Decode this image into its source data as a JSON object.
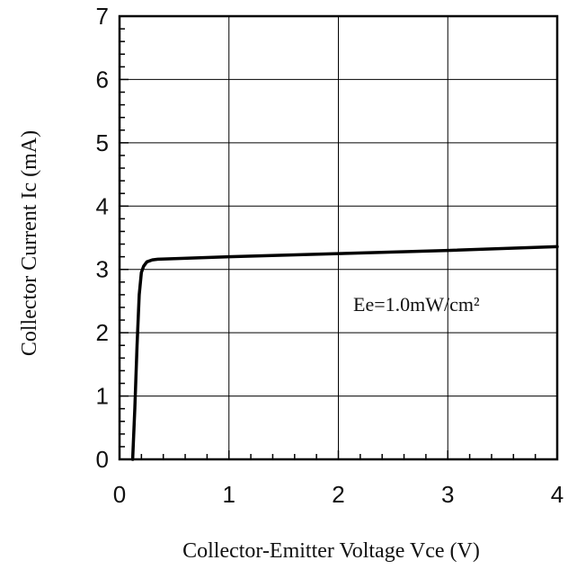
{
  "chart_data": {
    "type": "line",
    "title": "",
    "xlabel": "Collector-Emitter Voltage Vce (V)",
    "ylabel": "Collector Current Ic (mA)",
    "xlim": [
      0,
      4
    ],
    "ylim": [
      0,
      7
    ],
    "x_ticks": [
      "0",
      "1",
      "2",
      "3",
      "4"
    ],
    "y_ticks": [
      "0",
      "1",
      "2",
      "3",
      "4",
      "5",
      "6",
      "7"
    ],
    "grid": true,
    "annotation": "Ee=1.0mW/cm²",
    "series": [
      {
        "x": [
          0.12,
          0.14,
          0.16,
          0.18,
          0.2,
          0.22,
          0.25,
          0.3,
          0.35,
          0.5,
          1.0,
          2.0,
          3.0,
          4.0
        ],
        "y": [
          0,
          0.8,
          1.8,
          2.6,
          2.95,
          3.05,
          3.12,
          3.15,
          3.16,
          3.17,
          3.2,
          3.25,
          3.3,
          3.36
        ]
      }
    ]
  }
}
